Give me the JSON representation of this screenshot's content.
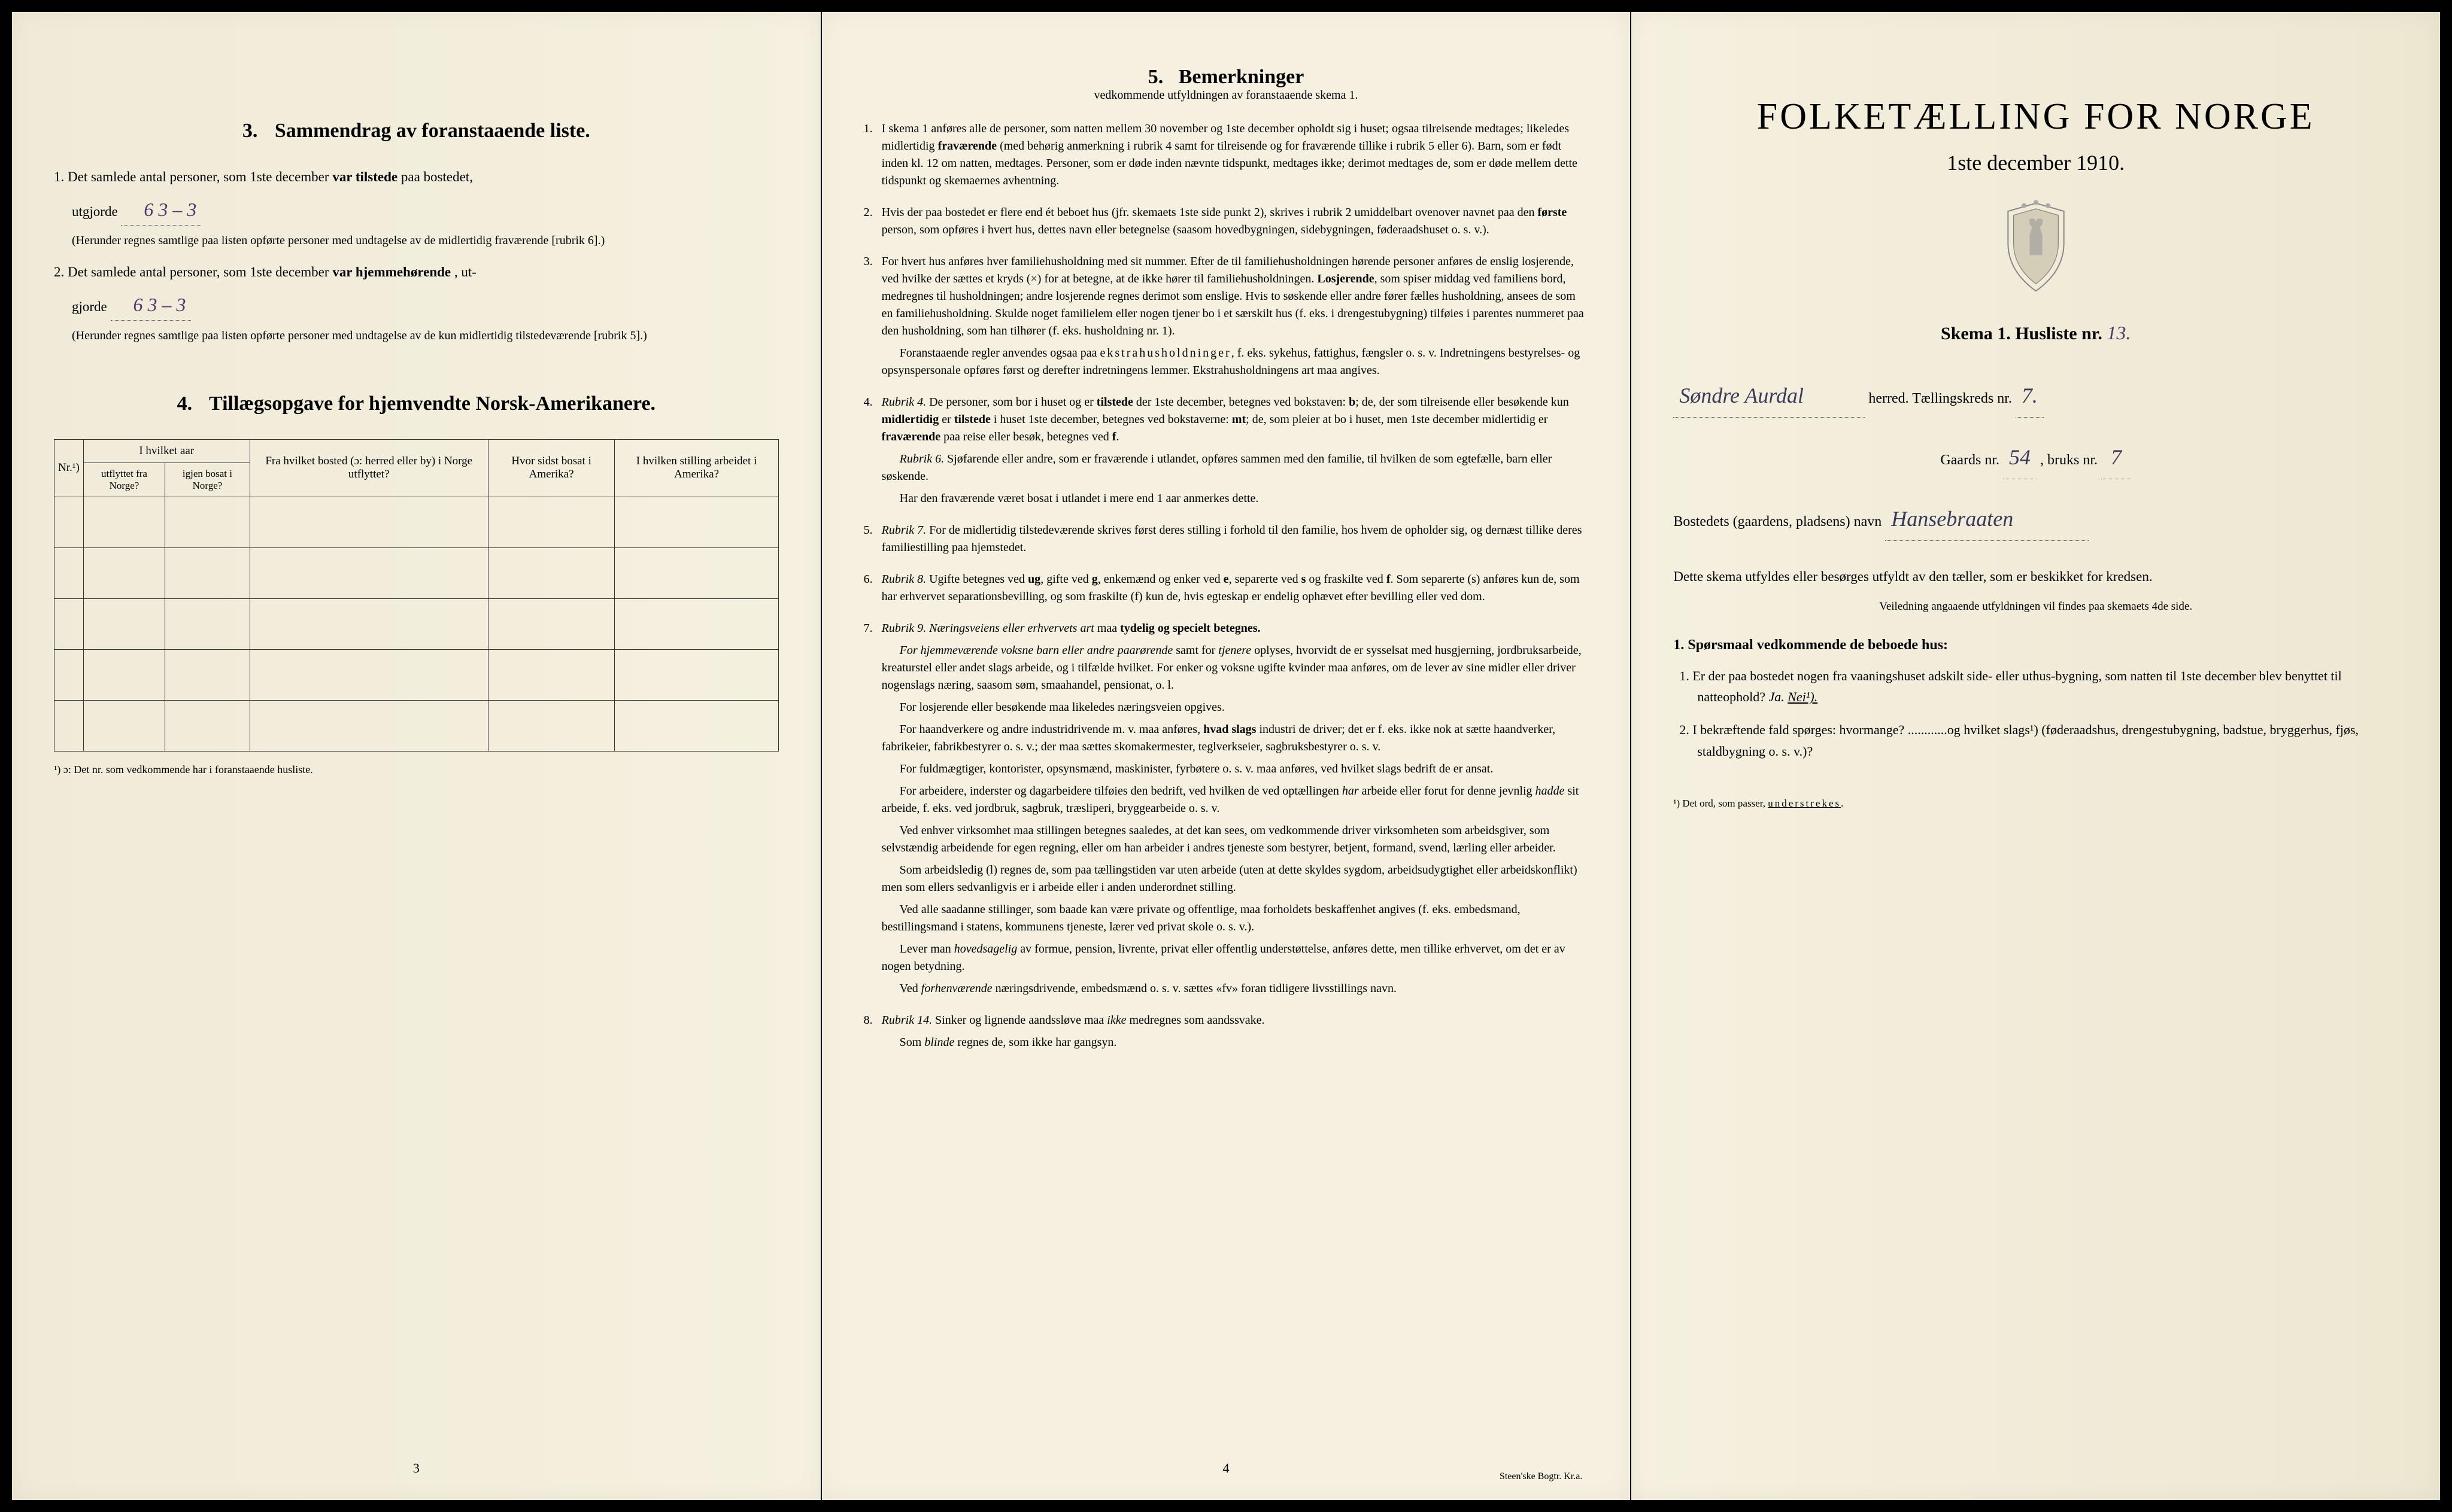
{
  "page1": {
    "section3": {
      "num": "3.",
      "title": "Sammendrag av foranstaaende liste.",
      "item1_prefix": "1.  Det samlede antal personer, som 1ste december",
      "item1_bold": "var tilstede",
      "item1_suffix": "paa bostedet,",
      "item1_line2": "utgjorde",
      "item1_val": "6    3 – 3",
      "item1_note": "(Herunder regnes samtlige paa listen opførte personer med undtagelse av de midlertidig fraværende [rubrik 6].)",
      "item2_prefix": "2.  Det samlede antal personer, som 1ste december",
      "item2_bold": "var hjemmehørende",
      "item2_suffix": ", ut-",
      "item2_line2": "gjorde",
      "item2_val": "6    3 – 3",
      "item2_note": "(Herunder regnes samtlige paa listen opførte personer med undtagelse av de kun midlertidig tilstedeværende [rubrik 5].)"
    },
    "section4": {
      "num": "4.",
      "title": "Tillægsopgave for hjemvendte Norsk-Amerikanere.",
      "headers": {
        "col1": "Nr.¹)",
        "col2_top": "I hvilket aar",
        "col2a": "utflyttet fra Norge?",
        "col2b": "igjen bosat i Norge?",
        "col3": "Fra hvilket bosted (ɔ: herred eller by) i Norge utflyttet?",
        "col4": "Hvor sidst bosat i Amerika?",
        "col5": "I hvilken stilling arbeidet i Amerika?"
      },
      "footnote": "¹) ɔ: Det nr. som vedkommende har i foranstaaende husliste."
    },
    "pagenum": "3"
  },
  "page2": {
    "title_num": "5.",
    "title": "Bemerkninger",
    "subtitle": "vedkommende utfyldningen av foranstaaende skema 1.",
    "rules": [
      {
        "num": "1.",
        "paras": [
          "I skema 1 anføres alle de personer, som natten mellem 30 november og 1ste december opholdt sig i huset; ogsaa tilreisende medtages; likeledes midlertidig <b>fraværende</b> (med behørig anmerkning i rubrik 4 samt for tilreisende og for fraværende tillike i rubrik 5 eller 6). Barn, som er født inden kl. 12 om natten, medtages. Personer, som er døde inden nævnte tidspunkt, medtages ikke; derimot medtages de, som er døde mellem dette tidspunkt og skemaernes avhentning."
        ]
      },
      {
        "num": "2.",
        "paras": [
          "Hvis der paa bostedet er flere end ét beboet hus (jfr. skemaets 1ste side punkt 2), skrives i rubrik 2 umiddelbart ovenover navnet paa den <b>første</b> person, som opføres i hvert hus, dettes navn eller betegnelse (saasom hovedbygningen, sidebygningen, føderaadshuset o. s. v.)."
        ]
      },
      {
        "num": "3.",
        "paras": [
          "For hvert hus anføres hver familiehusholdning med sit nummer. Efter de til familiehusholdningen hørende personer anføres de enslig losjerende, ved hvilke der sættes et kryds (×) for at betegne, at de ikke hører til familiehusholdningen. <b>Losjerende</b>, som spiser middag ved familiens bord, medregnes til husholdningen; andre losjerende regnes derimot som enslige. Hvis to søskende eller andre fører fælles husholdning, ansees de som en familiehusholdning. Skulde noget familielem eller nogen tjener bo i et særskilt hus (f. eks. i drengestubygning) tilføies i parentes nummeret paa den husholdning, som han tilhører (f. eks. husholdning nr. 1).",
          "Foranstaaende regler anvendes ogsaa paa <span class='spaced'>ekstrahusholdninger</span>, f. eks. sykehus, fattighus, fængsler o. s. v. Indretningens bestyrelses- og opsynspersonale opføres først og derefter indretningens lemmer. Ekstrahusholdningens art maa angives."
        ]
      },
      {
        "num": "4.",
        "paras": [
          "<i>Rubrik 4.</i> De personer, som bor i huset og er <b>tilstede</b> der 1ste december, betegnes ved bokstaven: <b>b</b>; de, der som tilreisende eller besøkende kun <b>midlertidig</b> er <b>tilstede</b> i huset 1ste december, betegnes ved bokstaverne: <b>mt</b>; de, som pleier at bo i huset, men 1ste december midlertidig er <b>fraværende</b> paa reise eller besøk, betegnes ved <b>f</b>.",
          "<i>Rubrik 6.</i> Sjøfarende eller andre, som er fraværende i utlandet, opføres sammen med den familie, til hvilken de som egtefælle, barn eller søskende.",
          "Har den fraværende været bosat i utlandet i mere end 1 aar anmerkes dette."
        ]
      },
      {
        "num": "5.",
        "paras": [
          "<i>Rubrik 7.</i> For de midlertidig tilstedeværende skrives først deres stilling i forhold til den familie, hos hvem de opholder sig, og dernæst tillike deres familiestilling paa hjemstedet."
        ]
      },
      {
        "num": "6.",
        "paras": [
          "<i>Rubrik 8.</i> Ugifte betegnes ved <b>ug</b>, gifte ved <b>g</b>, enkemænd og enker ved <b>e</b>, separerte ved <b>s</b> og fraskilte ved <b>f</b>. Som separerte (s) anføres kun de, som har erhvervet separationsbevilling, og som fraskilte (f) kun de, hvis egteskap er endelig ophævet efter bevilling eller ved dom."
        ]
      },
      {
        "num": "7.",
        "paras": [
          "<i>Rubrik 9. Næringsveiens eller erhvervets art</i> maa <b>tydelig og specielt betegnes.</b>",
          "<i>For hjemmeværende voksne barn eller andre paarørende</i> samt for <i>tjenere</i> oplyses, hvorvidt de er sysselsat med husgjerning, jordbruksarbeide, kreaturstel eller andet slags arbeide, og i tilfælde hvilket. For enker og voksne ugifte kvinder maa anføres, om de lever av sine midler eller driver nogenslags næring, saasom søm, smaahandel, pensionat, o. l.",
          "For losjerende eller besøkende maa likeledes næringsveien opgives.",
          "For haandverkere og andre industridrivende m. v. maa anføres, <b>hvad slags</b> industri de driver; det er f. eks. ikke nok at sætte haandverker, fabrikeier, fabrikbestyrer o. s. v.; der maa sættes skomakermester, teglverkseier, sagbruksbestyrer o. s. v.",
          "For fuldmægtiger, kontorister, opsynsmænd, maskinister, fyrbøtere o. s. v. maa anføres, ved hvilket slags bedrift de er ansat.",
          "For arbeidere, inderster og dagarbeidere tilføies den bedrift, ved hvilken de ved optællingen <i>har</i> arbeide eller forut for denne jevnlig <i>hadde</i> sit arbeide, f. eks. ved jordbruk, sagbruk, træsliperi, bryggearbeide o. s. v.",
          "Ved enhver virksomhet maa stillingen betegnes saaledes, at det kan sees, om vedkommende driver virksomheten som arbeidsgiver, som selvstændig arbeidende for egen regning, eller om han arbeider i andres tjeneste som bestyrer, betjent, formand, svend, lærling eller arbeider.",
          "Som arbeidsledig (l) regnes de, som paa tællingstiden var uten arbeide (uten at dette skyldes sygdom, arbeidsudygtighet eller arbeidskonflikt) men som ellers sedvanligvis er i arbeide eller i anden underordnet stilling.",
          "Ved alle saadanne stillinger, som baade kan være private og offentlige, maa forholdets beskaffenhet angives (f. eks. embedsmand, bestillingsmand i statens, kommunens tjeneste, lærer ved privat skole o. s. v.).",
          "Lever man <i>hovedsagelig</i> av formue, pension, livrente, privat eller offentlig understøttelse, anføres dette, men tillike erhvervet, om det er av nogen betydning.",
          "Ved <i>forhenværende</i> næringsdrivende, embedsmænd o. s. v. sættes «fv» foran tidligere livsstillings navn."
        ]
      },
      {
        "num": "8.",
        "paras": [
          "<i>Rubrik 14.</i> Sinker og lignende aandssløve maa <i>ikke</i> medregnes som aandssvake.",
          "Som <i>blinde</i> regnes de, som ikke har gangsyn."
        ]
      }
    ],
    "pagenum": "4",
    "printer": "Steen'ske Bogtr. Kr.a."
  },
  "page3": {
    "main_title": "FOLKETÆLLING FOR NORGE",
    "date": "1ste december 1910.",
    "skema": "Skema 1.  Husliste nr.",
    "husliste_nr": "13.",
    "herred_hw": "Søndre Aurdal",
    "herred_label": "herred.  Tællingskreds nr.",
    "kreds_nr": "7.",
    "gaards_label": "Gaards nr.",
    "gaards_nr": "54",
    "bruks_label": ", bruks nr.",
    "bruks_nr": "7",
    "bosted_label": "Bostedets (gaardens, pladsens) navn",
    "bosted_hw": "Hansebraaten",
    "explain": "Dette skema utfyldes eller besørges utfyldt av den tæller, som er beskikket for kredsen.",
    "explain_small": "Veiledning angaaende utfyldningen vil findes paa skemaets 4de side.",
    "q_title": "1. Spørsmaal vedkommende de beboede hus:",
    "q1": "1.  Er der paa bostedet nogen fra vaaningshuset adskilt side- eller uthus-bygning, som natten til 1ste december blev benyttet til natteophold?",
    "q1_ja": "Ja.",
    "q1_nei": "Nei¹).",
    "q2": "2.  I bekræftende fald spørges: hvormange? ............og hvilket slags¹) (føderaadshus, drengestubygning, badstue, bryggerhus, fjøs, staldbygning o. s. v.)?",
    "footnote": "¹) Det ord, som passer, understrekes."
  }
}
